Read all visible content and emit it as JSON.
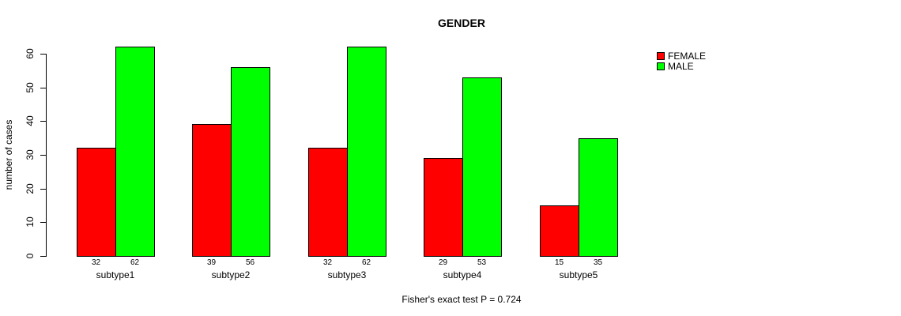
{
  "chart_data": {
    "type": "bar",
    "title": "GENDER",
    "xlabel": "",
    "ylabel": "number of cases",
    "categories": [
      "subtype1",
      "subtype2",
      "subtype3",
      "subtype4",
      "subtype5"
    ],
    "series": [
      {
        "name": "FEMALE",
        "color": "#FF0000",
        "values": [
          32,
          39,
          32,
          29,
          15
        ]
      },
      {
        "name": "MALE",
        "color": "#00FF00",
        "values": [
          62,
          56,
          62,
          53,
          35
        ]
      }
    ],
    "ylim": [
      0,
      60
    ],
    "yticks": [
      0,
      10,
      20,
      30,
      40,
      50,
      60
    ],
    "grid": false,
    "legend_position": "top-right",
    "bar_value_labels_shown": true,
    "annotation": "Fisher's exact test P = 0.724"
  }
}
